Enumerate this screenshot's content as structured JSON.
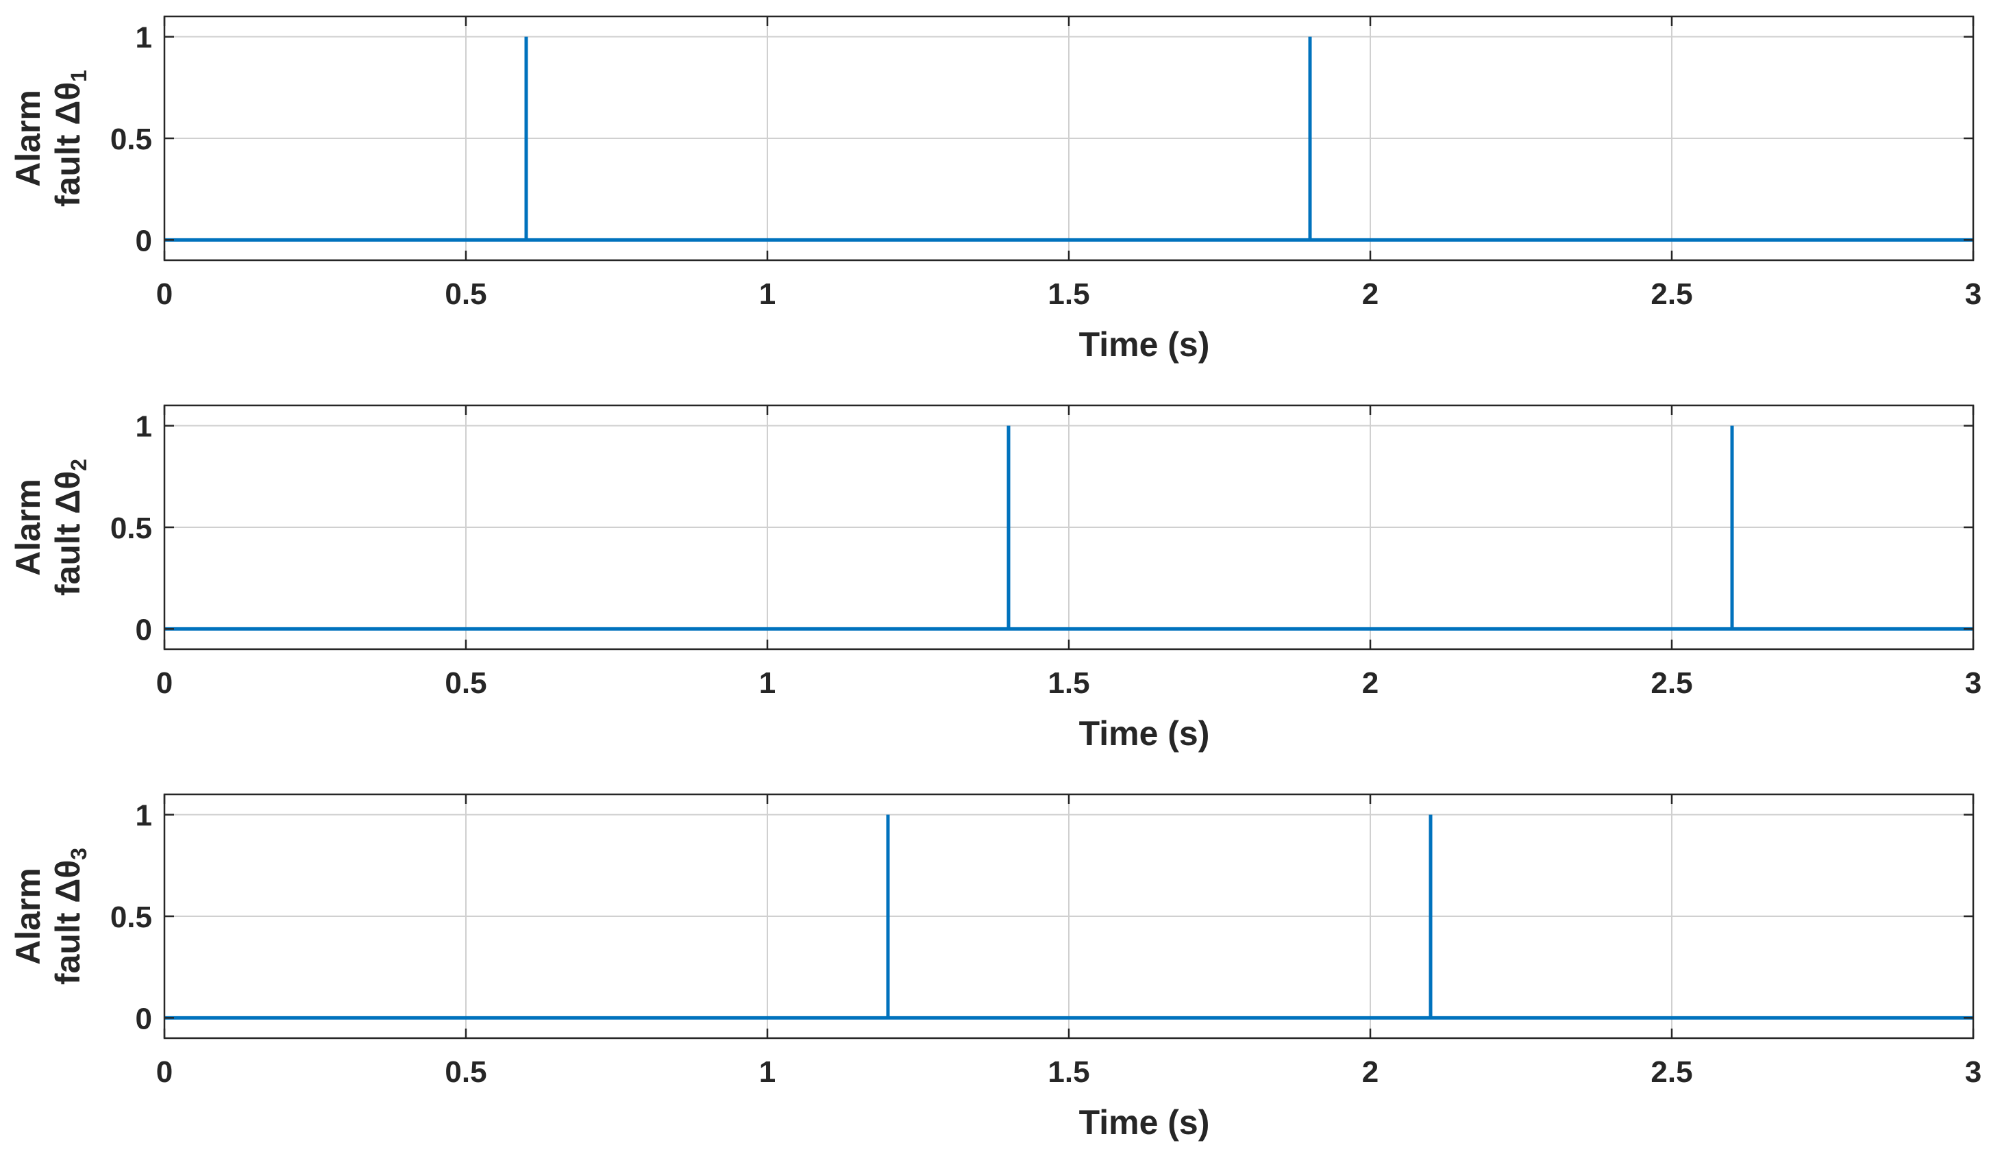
{
  "chart_data": [
    {
      "type": "line",
      "xlabel": "Time (s)",
      "ylabel_line1": "Alarm",
      "ylabel_line2": "fault Δθ",
      "ylabel_subscript": "1",
      "xlim": [
        0,
        3
      ],
      "ylim": [
        -0.1,
        1.1
      ],
      "xticks": [
        0,
        0.5,
        1,
        1.5,
        2,
        2.5,
        3
      ],
      "xtick_labels": [
        "0",
        "0.5",
        "1",
        "1.5",
        "2",
        "2.5",
        "3"
      ],
      "yticks": [
        0,
        0.5,
        1
      ],
      "ytick_labels": [
        "0",
        "0.5",
        "1"
      ],
      "grid": true,
      "series": [
        {
          "color": "#0072BD",
          "x": [
            0,
            0.6,
            0.6,
            0.6,
            0.6,
            1.9,
            1.9,
            1.9,
            1.9,
            3
          ],
          "y": [
            0,
            0,
            1,
            1,
            0,
            0,
            1,
            1,
            0,
            0
          ]
        }
      ]
    },
    {
      "type": "line",
      "xlabel": "Time (s)",
      "ylabel_line1": "Alarm",
      "ylabel_line2": "fault Δθ",
      "ylabel_subscript": "2",
      "xlim": [
        0,
        3
      ],
      "ylim": [
        -0.1,
        1.1
      ],
      "xticks": [
        0,
        0.5,
        1,
        1.5,
        2,
        2.5,
        3
      ],
      "xtick_labels": [
        "0",
        "0.5",
        "1",
        "1.5",
        "2",
        "2.5",
        "3"
      ],
      "yticks": [
        0,
        0.5,
        1
      ],
      "ytick_labels": [
        "0",
        "0.5",
        "1"
      ],
      "grid": true,
      "series": [
        {
          "color": "#0072BD",
          "x": [
            0,
            1.4,
            1.4,
            1.4,
            1.4,
            2.6,
            2.6,
            2.6,
            2.6,
            3
          ],
          "y": [
            0,
            0,
            1,
            1,
            0,
            0,
            1,
            1,
            0,
            0
          ]
        }
      ]
    },
    {
      "type": "line",
      "xlabel": "Time (s)",
      "ylabel_line1": "Alarm",
      "ylabel_line2": "fault Δθ",
      "ylabel_subscript": "3",
      "xlim": [
        0,
        3
      ],
      "ylim": [
        -0.1,
        1.1
      ],
      "xticks": [
        0,
        0.5,
        1,
        1.5,
        2,
        2.5,
        3
      ],
      "xtick_labels": [
        "0",
        "0.5",
        "1",
        "1.5",
        "2",
        "2.5",
        "3"
      ],
      "yticks": [
        0,
        0.5,
        1
      ],
      "ytick_labels": [
        "0",
        "0.5",
        "1"
      ],
      "grid": true,
      "series": [
        {
          "color": "#0072BD",
          "x": [
            0,
            1.2,
            1.2,
            1.2,
            1.2,
            2.1,
            2.1,
            2.1,
            2.1,
            3
          ],
          "y": [
            0,
            0,
            1,
            1,
            0,
            0,
            1,
            1,
            0,
            0
          ]
        }
      ]
    }
  ]
}
